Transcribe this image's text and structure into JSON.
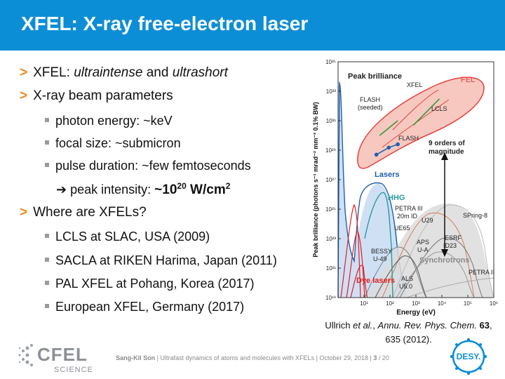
{
  "slide": {
    "title": "XFEL: X-ray free-electron laser",
    "bullets": {
      "b1_prefix": "XFEL: ",
      "b1_em1": "ultraintense",
      "b1_mid": " and ",
      "b1_em2": "ultrashort",
      "b2": "X-ray beam parameters",
      "b2a": "photon energy: ~keV",
      "b2b": "focal size: ~submicron",
      "b2c": "pulse duration: ~few femtoseconds",
      "b2d_arrow": "➔",
      "b2d_text": " peak intensity: ",
      "b2d_val": "~10",
      "b2d_exp": "20",
      "b2d_unit": " W/cm",
      "b2d_unit_exp": "2",
      "b3": "Where are XFELs?",
      "b3a": "LCLS at SLAC, USA (2009)",
      "b3b": "SACLA at RIKEN Harima, Japan (2011)",
      "b3c": "PAL XFEL at Pohang, Korea (2017)",
      "b3d": "European XFEL, Germany (2017)"
    },
    "citation": {
      "authors": "Ullrich ",
      "etal": "et al.",
      "journal": "Annu. Rev. Phys. Chem.",
      "volume": "63",
      "pages_year": "635 (2012)."
    },
    "footer": {
      "author": "Sang-Kil Son",
      "sep1": " | ",
      "talk": "Ultrafast dynamics of atoms and molecules with XFELs",
      "sep2": " | ",
      "date": "October 29, 2018",
      "sep3": " | ",
      "page": "3",
      "total": " / 20"
    },
    "logos": {
      "cfel_top": "CFEL",
      "cfel_bottom": "SCIENCE",
      "desy": "DESY."
    },
    "colors": {
      "title_bar": "#0c8ed6",
      "bullet_marker": "#f28a1e",
      "fel_region": "#e8403c",
      "lasers": "#1f5fb0",
      "synchrotrons": "#8a8a8a",
      "hhg": "#2a9a9a",
      "dye": "#e02020"
    }
  },
  "chart_data": {
    "type": "line",
    "title": "Peak brilliance",
    "xlabel": "Energy (eV)",
    "ylabel": "Peak brilliance (photons s⁻¹ mrad⁻² mm⁻² 0.1% BW)",
    "xscale": "log",
    "yscale": "log",
    "xlim": [
      1,
      1000000
    ],
    "ylim": [
      1e+19,
      1e+35
    ],
    "xticks": [
      "10¹",
      "10²",
      "10³",
      "10⁴",
      "10⁵",
      "10⁶"
    ],
    "yticks": [
      "10¹⁹",
      "10²¹",
      "10²³",
      "10²⁵",
      "10²⁷",
      "10²⁹",
      "10³¹",
      "10³³",
      "10³⁵"
    ],
    "annotations": {
      "fel": "FEL",
      "xfel": "XFEL",
      "flash_seeded": [
        "FLASH",
        "(seeded)"
      ],
      "flash": "FLASH",
      "lcls": "LCLS",
      "orders": [
        "9 orders of",
        "magnitude"
      ],
      "lasers": "Lasers",
      "hhg": "HHG",
      "petra3": [
        "PETRA III",
        "20m ID"
      ],
      "u29": "U29",
      "spring8": "SPring-8",
      "ue65": "UE65",
      "esrf": [
        "ESRF",
        "ID23"
      ],
      "aps": [
        "APS",
        "U-A"
      ],
      "bessy": [
        "BESSY",
        "U-49"
      ],
      "synchrotrons": "Synchrotrons",
      "petra2": "PETRA II",
      "dye": "Dye lasers",
      "als": [
        "ALS",
        "U5.0"
      ]
    },
    "series": [
      {
        "name": "FLASH",
        "points": [
          [
            30,
            5e+28
          ],
          [
            90,
            1.5e+29
          ],
          [
            200,
            2.5e+29
          ]
        ]
      },
      {
        "name": "LCLS",
        "points": [
          [
            800,
            5e+30
          ],
          [
            8000,
            3e+32
          ]
        ]
      },
      {
        "name": "FLASH (seeded)",
        "points": [
          [
            40,
            1e+30
          ],
          [
            200,
            1e+31
          ]
        ]
      }
    ]
  }
}
